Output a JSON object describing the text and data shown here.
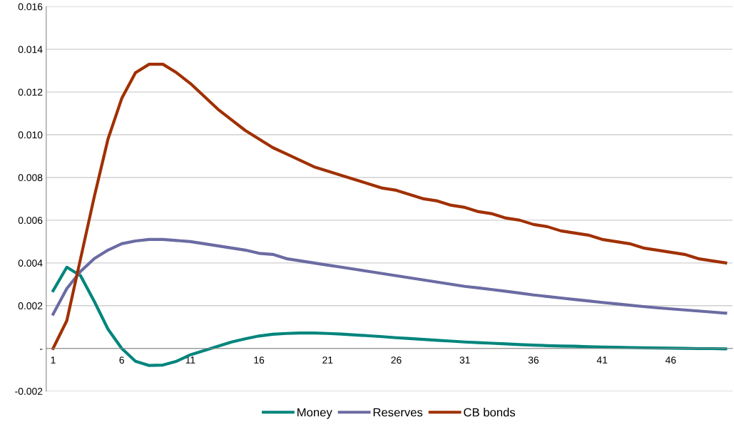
{
  "chart_data": {
    "type": "line",
    "categories": [
      "1",
      null,
      null,
      null,
      null,
      "6",
      null,
      null,
      null,
      null,
      "11",
      null,
      null,
      null,
      null,
      "16",
      null,
      null,
      null,
      null,
      "21",
      null,
      null,
      null,
      null,
      "26",
      null,
      null,
      null,
      null,
      "31",
      null,
      null,
      null,
      null,
      "36",
      null,
      null,
      null,
      null,
      "41",
      null,
      null,
      null,
      null,
      "46",
      null,
      null,
      null,
      null
    ],
    "series": [
      {
        "name": "Money",
        "color": "#00857c",
        "values": [
          0.0027,
          0.0038,
          0.0034,
          0.0022,
          0.0009,
          0.0,
          -0.0006,
          -0.0008,
          -0.00078,
          -0.0006,
          -0.0003,
          -0.0001,
          0.0001,
          0.0003,
          0.00045,
          0.00058,
          0.00066,
          0.0007,
          0.00072,
          0.00072,
          0.0007,
          0.00067,
          0.00063,
          0.00059,
          0.00055,
          0.0005,
          0.00046,
          0.00042,
          0.00038,
          0.00034,
          0.0003,
          0.00027,
          0.00024,
          0.00021,
          0.00018,
          0.00015,
          0.00013,
          0.00011,
          0.0001,
          8e-05,
          6e-05,
          5e-05,
          4e-05,
          3e-05,
          2e-05,
          1e-05,
          0.0,
          -1e-05,
          -1e-05,
          -2e-05
        ]
      },
      {
        "name": "Reserves",
        "color": "#6b6ba3",
        "values": [
          0.0016,
          0.0028,
          0.0036,
          0.0042,
          0.0046,
          0.0049,
          0.00503,
          0.0051,
          0.0051,
          0.00505,
          0.005,
          0.0049,
          0.0048,
          0.0047,
          0.0046,
          0.00445,
          0.0044,
          0.0042,
          0.0041,
          0.004,
          0.0039,
          0.0038,
          0.0037,
          0.0036,
          0.0035,
          0.0034,
          0.0033,
          0.0032,
          0.0031,
          0.003,
          0.0029,
          0.00283,
          0.00275,
          0.00267,
          0.00259,
          0.0025,
          0.00243,
          0.00236,
          0.00229,
          0.00222,
          0.00215,
          0.00209,
          0.00202,
          0.00196,
          0.0019,
          0.00185,
          0.0018,
          0.00175,
          0.0017,
          0.00165
        ]
      },
      {
        "name": "CB bonds",
        "color": "#a03000",
        "values": [
          0.0,
          0.0013,
          0.0042,
          0.0071,
          0.0098,
          0.0117,
          0.0129,
          0.0133,
          0.0133,
          0.0129,
          0.0124,
          0.0118,
          0.0112,
          0.0107,
          0.0102,
          0.0098,
          0.0094,
          0.0091,
          0.0088,
          0.0085,
          0.0083,
          0.0081,
          0.0079,
          0.0077,
          0.0075,
          0.0074,
          0.0072,
          0.007,
          0.0069,
          0.0067,
          0.0066,
          0.0064,
          0.0063,
          0.0061,
          0.006,
          0.0058,
          0.0057,
          0.0055,
          0.0054,
          0.0053,
          0.0051,
          0.005,
          0.0049,
          0.0047,
          0.0046,
          0.0045,
          0.0044,
          0.0042,
          0.0041,
          0.004
        ]
      }
    ],
    "ylim": [
      -0.002,
      0.016
    ],
    "yticks": [
      {
        "value": -0.002,
        "label": "-0.002"
      },
      {
        "value": 0,
        "label": "-"
      },
      {
        "value": 0.002,
        "label": "0.002"
      },
      {
        "value": 0.004,
        "label": "0.004"
      },
      {
        "value": 0.006,
        "label": "0.006"
      },
      {
        "value": 0.008,
        "label": "0.008"
      },
      {
        "value": 0.01,
        "label": "0.010"
      },
      {
        "value": 0.012,
        "label": "0.012"
      },
      {
        "value": 0.014,
        "label": "0.014"
      },
      {
        "value": 0.016,
        "label": "0.016"
      }
    ],
    "grid": "y",
    "legend": "bottom",
    "marker": "none",
    "line_style": "solid"
  }
}
